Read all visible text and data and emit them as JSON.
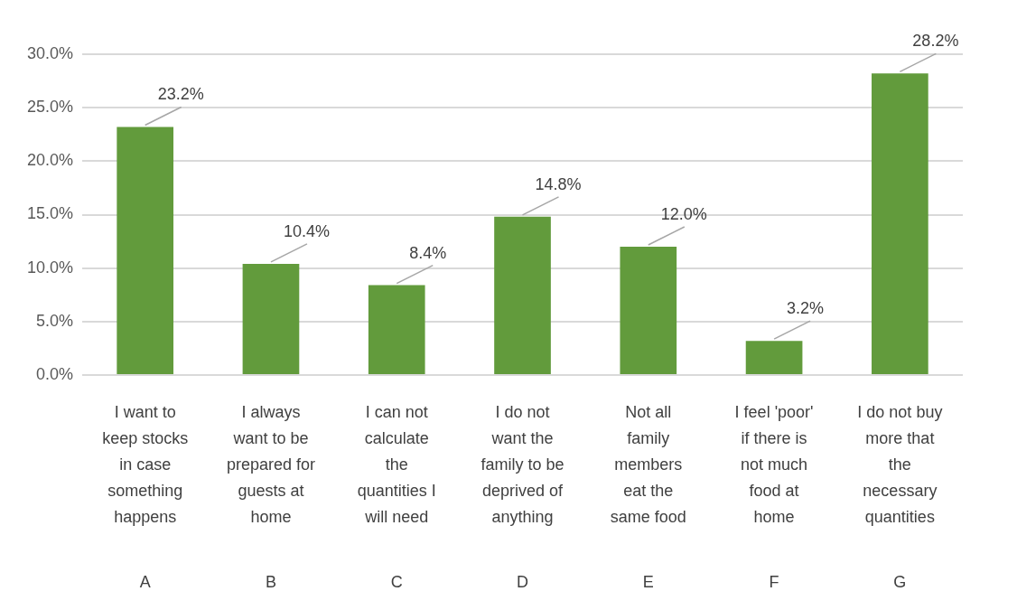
{
  "chart_data": {
    "type": "bar",
    "categories": [
      "I want to keep stocks in case something happens",
      "I always want to be prepared for guests at home",
      "I can not calculate the quantities I will need",
      "I do not want the family to be deprived of anything",
      "Not all family members eat the same food",
      "I feel 'poor' if there is not much food at home",
      "I do not buy more that the necessary quantities"
    ],
    "values": [
      23.2,
      10.4,
      8.4,
      14.8,
      12.0,
      3.2,
      28.2
    ],
    "value_labels": [
      "23.2%",
      "10.4%",
      "8.4%",
      "14.8%",
      "12.0%",
      "3.2%",
      "28.2%"
    ],
    "color": "#629b3c",
    "ylim": [
      0,
      30
    ],
    "yticks": [
      {
        "value": 0,
        "label": "0.0%"
      },
      {
        "value": 5,
        "label": "5.0%"
      },
      {
        "value": 10,
        "label": "10.0%"
      },
      {
        "value": 15,
        "label": "15.0%"
      },
      {
        "value": 20,
        "label": "20.0%"
      },
      {
        "value": 25,
        "label": "25.0%"
      },
      {
        "value": 30,
        "label": "30.0%"
      }
    ],
    "grid": "y",
    "legend": false,
    "annotations": [
      "A",
      "B",
      "C",
      "D",
      "E",
      "F",
      "G"
    ]
  }
}
